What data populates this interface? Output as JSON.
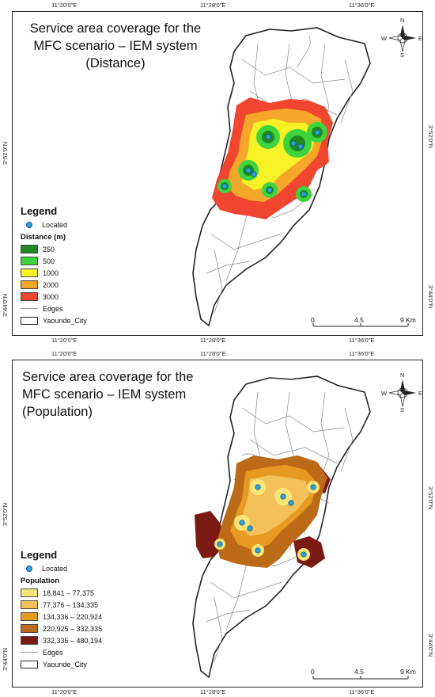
{
  "top": {
    "title_lines": [
      "Service area coverage for the",
      "MFC scenario – IEM system",
      "(Distance)"
    ],
    "legend_title": "Legend",
    "located_label": "Located",
    "class_title": "Distance (m)",
    "classes": [
      {
        "label": "250",
        "color": "#1f8a1f"
      },
      {
        "label": "500",
        "color": "#3ed43e"
      },
      {
        "label": "1000",
        "color": "#f6f226"
      },
      {
        "label": "2000",
        "color": "#f5a72a"
      },
      {
        "label": "3000",
        "color": "#f0452e"
      }
    ],
    "edges_label": "Edges",
    "city_label": "Yaounde_City",
    "x_ticks": [
      "11°20'0\"E",
      "11°28'0\"E",
      "11°36'0\"E"
    ],
    "y_ticks": [
      "3°52'0\"N",
      "3°44'0\"N"
    ],
    "scale_labels": [
      "0",
      "4.5",
      "9 Km"
    ]
  },
  "bottom": {
    "title_lines": [
      "Service area coverage for the",
      "MFC scenario – IEM system",
      "(Population)"
    ],
    "legend_title": "Legend",
    "located_label": "Located",
    "class_title": "Population",
    "classes": [
      {
        "label": "18,841 – 77,375",
        "color": "#f9e47a"
      },
      {
        "label": "77,376 – 134,335",
        "color": "#f2c15a"
      },
      {
        "label": "134,336 – 220,924",
        "color": "#e59b22"
      },
      {
        "label": "220,925 – 332,335",
        "color": "#bb6a17"
      },
      {
        "label": "332,336 – 480,194",
        "color": "#7a1a12"
      }
    ],
    "edges_label": "Edges",
    "city_label": "Yaounde_City",
    "x_ticks": [
      "11°20'0\"E",
      "11°28'0\"E",
      "11°36'0\"E"
    ],
    "y_ticks": [
      "3°52'0\"N",
      "3°44'0\"N"
    ],
    "scale_labels": [
      "0",
      "4.5",
      "9 Km"
    ]
  },
  "compass": {
    "n": "N",
    "s": "S",
    "e": "E",
    "w": "W"
  }
}
